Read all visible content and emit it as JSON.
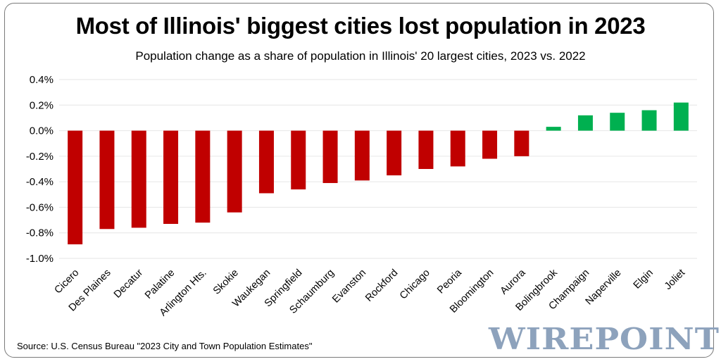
{
  "chart_data": {
    "type": "bar",
    "title": "Most of Illinois' biggest cities lost population in 2023",
    "subtitle": "Population change as a share of population in Illinois' 20 largest cities, 2023 vs. 2022",
    "categories": [
      "Cicero",
      "Des Plaines",
      "Decatur",
      "Palatine",
      "Arlington Hts.",
      "Skokie",
      "Waukegan",
      "Springfield",
      "Schaumburg",
      "Evanston",
      "Rockford",
      "Chicago",
      "Peoria",
      "Bloomington",
      "Aurora",
      "Bolingbrook",
      "Champaign",
      "Naperville",
      "Elgin",
      "Joliet"
    ],
    "values": [
      -0.89,
      -0.77,
      -0.76,
      -0.73,
      -0.72,
      -0.64,
      -0.49,
      -0.46,
      -0.41,
      -0.39,
      -0.35,
      -0.3,
      -0.28,
      -0.22,
      -0.2,
      0.03,
      0.12,
      0.14,
      0.16,
      0.22
    ],
    "ylim": [
      -1.0,
      0.4
    ],
    "yticks": [
      0.4,
      0.2,
      0.0,
      -0.2,
      -0.4,
      -0.6,
      -0.8,
      -1.0
    ],
    "ytick_labels": [
      "0.4%",
      "0.2%",
      "0.0%",
      "-0.2%",
      "-0.4%",
      "-0.6%",
      "-0.8%",
      "-1.0%"
    ],
    "xlabel": "",
    "ylabel": "",
    "grid": true,
    "colors": {
      "negative": "#c00000",
      "positive": "#00b050",
      "grid": "#e6e6e6"
    },
    "source": "Source: U.S. Census Bureau \"2023 City and Town Population Estimates\"",
    "watermark": "WIREPOINTS"
  }
}
